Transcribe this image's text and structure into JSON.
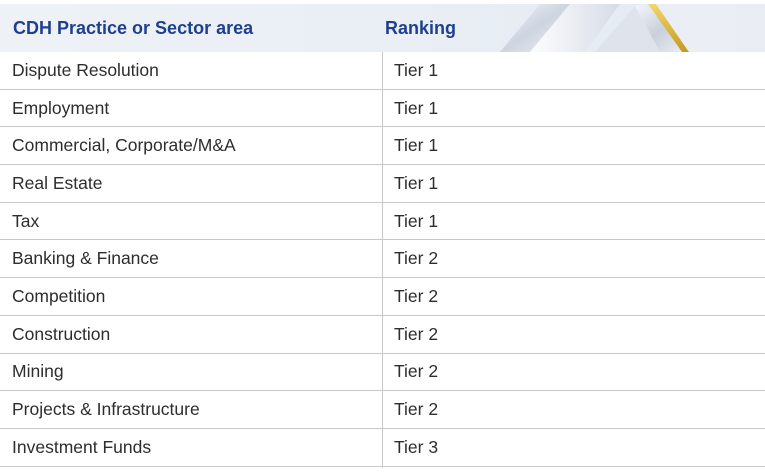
{
  "header": {
    "col1": "CDH Practice or Sector area",
    "col2": "Ranking"
  },
  "rows": [
    {
      "area": "Dispute Resolution",
      "ranking": "Tier 1"
    },
    {
      "area": "Employment",
      "ranking": "Tier 1"
    },
    {
      "area": "Commercial, Corporate/M&A",
      "ranking": "Tier 1"
    },
    {
      "area": "Real Estate",
      "ranking": "Tier 1"
    },
    {
      "area": "Tax",
      "ranking": "Tier 1"
    },
    {
      "area": "Banking & Finance",
      "ranking": "Tier 2"
    },
    {
      "area": "Competition",
      "ranking": "Tier 2"
    },
    {
      "area": "Construction",
      "ranking": "Tier 2"
    },
    {
      "area": "Mining",
      "ranking": "Tier 2"
    },
    {
      "area": "Projects & Infrastructure",
      "ranking": "Tier 2"
    },
    {
      "area": "Investment Funds",
      "ranking": "Tier 3"
    }
  ],
  "colors": {
    "header_text": "#1f3f8f",
    "header_bg": "#eef2f7",
    "gold_accent": "#d8b43a",
    "row_text": "#2d2d2d",
    "border": "#c8c8c8"
  }
}
